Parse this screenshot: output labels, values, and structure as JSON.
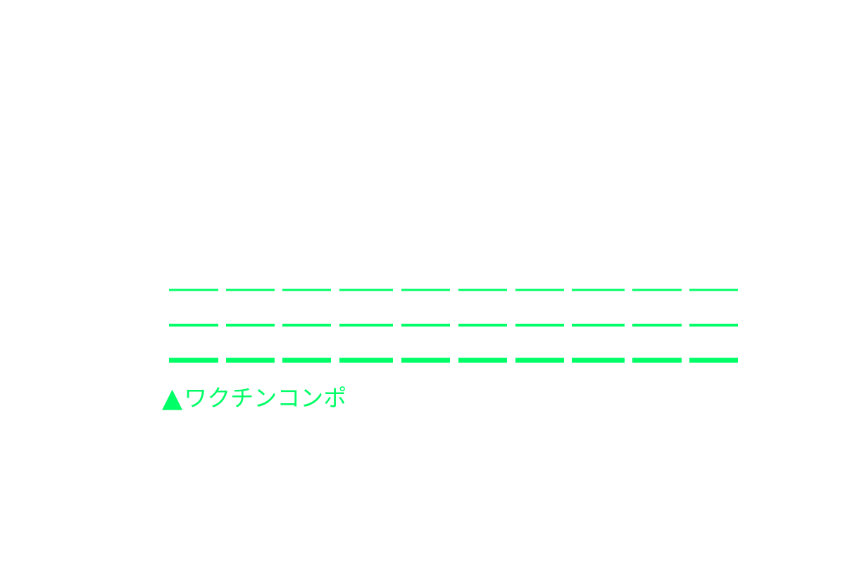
{
  "accent_color": "#00ff66",
  "pattern": {
    "rows": 3,
    "dashes_per_row": 10
  },
  "caption": {
    "icon": "triangle-up-icon",
    "icon_glyph": "▲",
    "text": "ワクチンコンポ"
  }
}
